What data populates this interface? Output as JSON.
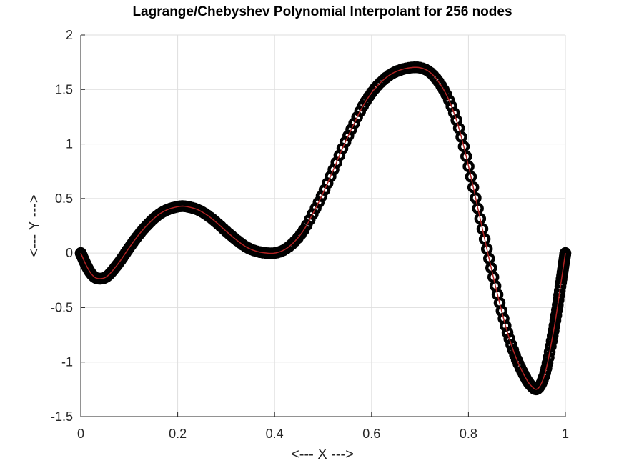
{
  "chart_data": {
    "type": "scatter",
    "title": "Lagrange/Chebyshev Polynomial Interpolant for 256 nodes",
    "xlabel": "<--- X --->",
    "ylabel": "<--- Y --->",
    "xlim": [
      0,
      1
    ],
    "ylim": [
      -1.5,
      2
    ],
    "x_ticks": [
      0,
      0.2,
      0.4,
      0.6,
      0.8,
      1
    ],
    "x_tick_labels": [
      "0",
      "0.2",
      "0.4",
      "0.6",
      "0.8",
      "1"
    ],
    "y_ticks": [
      -1.5,
      -1,
      -0.5,
      0,
      0.5,
      1,
      1.5,
      2
    ],
    "y_tick_labels": [
      "-1.5",
      "-1",
      "-0.5",
      "0",
      "0.5",
      "1",
      "1.5",
      "2"
    ],
    "grid": true,
    "marker": "circle",
    "marker_color": "#000000",
    "line_color": "#b22222",
    "series": [
      {
        "node_count": 256,
        "node_distribution": "chebyshev",
        "curve_points": [
          {
            "x": 0.0,
            "y": 0.0
          },
          {
            "x": 0.01,
            "y": -0.1
          },
          {
            "x": 0.02,
            "y": -0.18
          },
          {
            "x": 0.03,
            "y": -0.225
          },
          {
            "x": 0.04,
            "y": -0.235
          },
          {
            "x": 0.05,
            "y": -0.225
          },
          {
            "x": 0.06,
            "y": -0.19
          },
          {
            "x": 0.08,
            "y": -0.08
          },
          {
            "x": 0.1,
            "y": 0.05
          },
          {
            "x": 0.12,
            "y": 0.17
          },
          {
            "x": 0.14,
            "y": 0.27
          },
          {
            "x": 0.16,
            "y": 0.35
          },
          {
            "x": 0.18,
            "y": 0.4
          },
          {
            "x": 0.2,
            "y": 0.425
          },
          {
            "x": 0.21,
            "y": 0.43
          },
          {
            "x": 0.22,
            "y": 0.425
          },
          {
            "x": 0.24,
            "y": 0.4
          },
          {
            "x": 0.26,
            "y": 0.35
          },
          {
            "x": 0.28,
            "y": 0.28
          },
          {
            "x": 0.3,
            "y": 0.2
          },
          {
            "x": 0.32,
            "y": 0.125
          },
          {
            "x": 0.34,
            "y": 0.06
          },
          {
            "x": 0.36,
            "y": 0.02
          },
          {
            "x": 0.38,
            "y": 0.002
          },
          {
            "x": 0.4,
            "y": 0.0
          },
          {
            "x": 0.42,
            "y": 0.03
          },
          {
            "x": 0.44,
            "y": 0.1
          },
          {
            "x": 0.46,
            "y": 0.21
          },
          {
            "x": 0.48,
            "y": 0.37
          },
          {
            "x": 0.5,
            "y": 0.55
          },
          {
            "x": 0.52,
            "y": 0.75
          },
          {
            "x": 0.54,
            "y": 0.96
          },
          {
            "x": 0.56,
            "y": 1.15
          },
          {
            "x": 0.58,
            "y": 1.33
          },
          {
            "x": 0.6,
            "y": 1.47
          },
          {
            "x": 0.62,
            "y": 1.57
          },
          {
            "x": 0.64,
            "y": 1.64
          },
          {
            "x": 0.66,
            "y": 1.68
          },
          {
            "x": 0.68,
            "y": 1.7
          },
          {
            "x": 0.7,
            "y": 1.7
          },
          {
            "x": 0.72,
            "y": 1.66
          },
          {
            "x": 0.74,
            "y": 1.56
          },
          {
            "x": 0.76,
            "y": 1.4
          },
          {
            "x": 0.78,
            "y": 1.15
          },
          {
            "x": 0.8,
            "y": 0.8
          },
          {
            "x": 0.82,
            "y": 0.4
          },
          {
            "x": 0.84,
            "y": 0.0
          },
          {
            "x": 0.86,
            "y": -0.38
          },
          {
            "x": 0.88,
            "y": -0.72
          },
          {
            "x": 0.9,
            "y": -0.98
          },
          {
            "x": 0.92,
            "y": -1.16
          },
          {
            "x": 0.93,
            "y": -1.22
          },
          {
            "x": 0.94,
            "y": -1.25
          },
          {
            "x": 0.95,
            "y": -1.2
          },
          {
            "x": 0.96,
            "y": -1.07
          },
          {
            "x": 0.97,
            "y": -0.85
          },
          {
            "x": 0.98,
            "y": -0.6
          },
          {
            "x": 0.99,
            "y": -0.3
          },
          {
            "x": 1.0,
            "y": 0.0
          }
        ]
      }
    ]
  }
}
